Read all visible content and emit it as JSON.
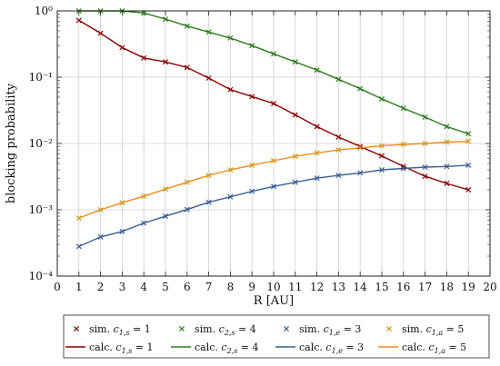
{
  "chart_data": {
    "type": "line",
    "xlabel": "R [AU]",
    "ylabel": "blocking probability",
    "xlim": [
      0,
      20
    ],
    "ylim": [
      0.0001,
      1
    ],
    "yscale": "log",
    "grid": true,
    "legend_position": "bottom",
    "x_ticks": [
      "0",
      "1",
      "2",
      "3",
      "4",
      "5",
      "6",
      "7",
      "8",
      "9",
      "10",
      "11",
      "12",
      "13",
      "14",
      "15",
      "16",
      "17",
      "18",
      "19",
      "20"
    ],
    "y_ticks": [
      {
        "value": 1,
        "label": "10⁰"
      },
      {
        "value": 0.1,
        "label": "10⁻¹"
      },
      {
        "value": 0.01,
        "label": "10⁻²"
      },
      {
        "value": 0.001,
        "label": "10⁻³"
      },
      {
        "value": 0.0001,
        "label": "10⁻⁴"
      }
    ],
    "x": [
      1,
      2,
      3,
      4,
      5,
      6,
      7,
      8,
      9,
      10,
      11,
      12,
      13,
      14,
      15,
      16,
      17,
      18,
      19
    ],
    "series": [
      {
        "name_sim": "sim. c1,s = 1",
        "name_calc": "calc. c1,s = 1",
        "legend_parts": {
          "sub": "1,s",
          "rhs": " = 1"
        },
        "color_line": "#8b0000",
        "color_marker": "#8b0000",
        "values": [
          0.72,
          0.46,
          0.28,
          0.195,
          0.17,
          0.14,
          0.097,
          0.065,
          0.051,
          0.04,
          0.027,
          0.018,
          0.0125,
          0.009,
          0.0065,
          0.0045,
          0.0032,
          0.0025,
          0.002
        ]
      },
      {
        "name_sim": "sim. c2,s = 4",
        "name_calc": "calc. c2,s = 4",
        "legend_parts": {
          "sub": "2,s",
          "rhs": " = 4"
        },
        "color_line": "#2e7d1f",
        "color_marker": "#2e7d1f",
        "values": [
          1.0,
          1.0,
          1.0,
          0.93,
          0.75,
          0.59,
          0.48,
          0.39,
          0.3,
          0.225,
          0.17,
          0.128,
          0.093,
          0.067,
          0.047,
          0.034,
          0.025,
          0.018,
          0.014
        ]
      },
      {
        "name_sim": "sim. c1,e = 3",
        "name_calc": "calc. c1,e = 3",
        "legend_parts": {
          "sub": "1,e",
          "rhs": " = 3"
        },
        "color_line": "#3a5f96",
        "color_marker": "#3a5f96",
        "values": [
          0.00028,
          0.00039,
          0.00047,
          0.00063,
          0.0008,
          0.00101,
          0.0013,
          0.00157,
          0.0019,
          0.00225,
          0.0026,
          0.003,
          0.0033,
          0.0036,
          0.004,
          0.0042,
          0.0044,
          0.0045,
          0.0047
        ]
      },
      {
        "name_sim": "sim. c1,a = 5",
        "name_calc": "calc. c1,a = 5",
        "legend_parts": {
          "sub": "1,a",
          "rhs": " = 5"
        },
        "color_line": "#f28a1e",
        "color_marker": "#c8a01e",
        "values": [
          0.00075,
          0.001,
          0.00128,
          0.0016,
          0.00205,
          0.0026,
          0.0033,
          0.004,
          0.0047,
          0.0055,
          0.0064,
          0.0072,
          0.008,
          0.0086,
          0.0092,
          0.0097,
          0.01,
          0.0105,
          0.0108
        ]
      }
    ]
  }
}
